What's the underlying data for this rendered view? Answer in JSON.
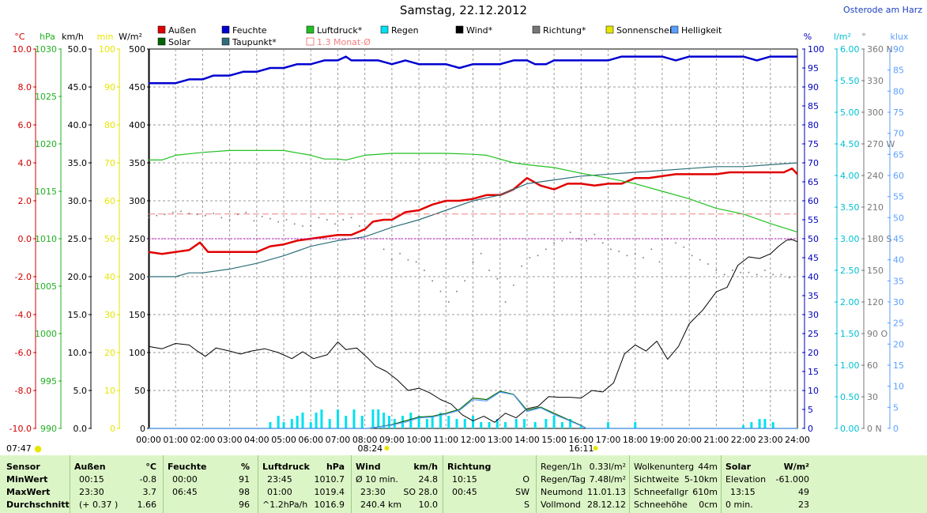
{
  "title": "Samstag, 22.12.2012",
  "location": "Osterode am Harz",
  "colors": {
    "aussen": "#e00000",
    "solar": "#006600",
    "feuchte": "#0000d0",
    "taupunkt": "#2e6e7a",
    "luftdruck": "#20c020",
    "monat": "#f08080",
    "regen": "#00e0f0",
    "wind": "#000000",
    "richtung": "#777777",
    "sonne": "#e6e600",
    "helligkeit": "#5b9fff"
  },
  "legend": [
    {
      "label": "Außen",
      "color": "#e00000"
    },
    {
      "label": "Solar",
      "color": "#006600"
    },
    {
      "label": "Feuchte",
      "color": "#0000d0"
    },
    {
      "label": "Taupunkt*",
      "color": "#2e6e7a"
    },
    {
      "label": "Luftdruck*",
      "color": "#20c020"
    },
    {
      "label": "1.3 Monat-Ø",
      "color": "#f08080"
    },
    {
      "label": "Regen",
      "color": "#00e0f0"
    },
    {
      "label": "Wind*",
      "color": "#000000"
    },
    {
      "label": "Richtung*",
      "color": "#777777"
    },
    {
      "label": "Sonnenschein",
      "color": "#e6e600"
    },
    {
      "label": "Helligkeit",
      "color": "#5b9fff"
    }
  ],
  "axes_left": [
    {
      "unit": "°C",
      "color": "#d00000",
      "ticks": [
        "10.0",
        "8.0",
        "6.0",
        "4.0",
        "2.0",
        "0.0",
        "-2.0",
        "-4.0",
        "-6.0",
        "-8.0",
        "-10.0"
      ]
    },
    {
      "unit": "hPa",
      "color": "#20b020",
      "ticks": [
        "1030",
        "1025",
        "1020",
        "1015",
        "1010",
        "1005",
        "1000",
        "995",
        "990"
      ]
    },
    {
      "unit": "km/h",
      "color": "#000000",
      "ticks": [
        "50.0",
        "45.0",
        "40.0",
        "35.0",
        "30.0",
        "25.0",
        "20.0",
        "15.0",
        "10.0",
        "5.0",
        "0.0"
      ]
    },
    {
      "unit": "min",
      "color": "#e6e600",
      "ticks": [
        "100",
        "90",
        "80",
        "70",
        "60",
        "50",
        "40",
        "30",
        "20",
        "10",
        "0"
      ]
    },
    {
      "unit": "W/m²",
      "color": "#000000",
      "ticks": [
        "500",
        "450",
        "400",
        "350",
        "300",
        "250",
        "200",
        "150",
        "100",
        "50",
        "0"
      ]
    }
  ],
  "axes_right": [
    {
      "unit": "%",
      "color": "#0000c0",
      "ticks": [
        "100",
        "95",
        "90",
        "85",
        "80",
        "75",
        "70",
        "65",
        "60",
        "55",
        "50",
        "45",
        "40",
        "35",
        "30",
        "25",
        "20",
        "15",
        "10",
        "5",
        "0"
      ]
    },
    {
      "unit": "l/m²",
      "color": "#00c0d0",
      "ticks": [
        "6.00",
        "5.50",
        "5.00",
        "4.50",
        "4.00",
        "3.50",
        "3.00",
        "2.50",
        "2.00",
        "1.50",
        "1.00",
        "0.50",
        "0.00"
      ]
    },
    {
      "unit": "°",
      "color": "#777777",
      "ticks": [
        "360 N",
        "330",
        "300",
        "270 W",
        "240",
        "210",
        "180 S",
        "150",
        "120",
        "90 O",
        "60",
        "30",
        "0 N"
      ]
    },
    {
      "unit": "klux",
      "color": "#5b9fff",
      "ticks": [
        "90",
        "85",
        "80",
        "75",
        "70",
        "65",
        "60",
        "55",
        "50",
        "45",
        "40",
        "35",
        "30",
        "25",
        "20",
        "15",
        "10",
        "5",
        "0"
      ]
    }
  ],
  "chart_data": {
    "type": "line",
    "title": "Samstag, 22.12.2012",
    "x_ticks": [
      "00:00",
      "01:00",
      "02:00",
      "03:00",
      "04:00",
      "05:00",
      "06:00",
      "07:00",
      "08:00",
      "09:00",
      "10:00",
      "11:00",
      "12:00",
      "13:00",
      "14:00",
      "15:00",
      "16:00",
      "17:00",
      "18:00",
      "19:00",
      "20:00",
      "21:00",
      "22:00",
      "23:00",
      "24:00"
    ],
    "xlim": [
      0,
      24
    ],
    "grid": true,
    "legend_position": "top",
    "series": [
      {
        "name": "Außen",
        "unit": "°C",
        "ylim": [
          -10,
          10
        ],
        "x": [
          0,
          0.5,
          1,
          1.5,
          1.9,
          2.2,
          3,
          3.5,
          4,
          4.5,
          5,
          5.5,
          6,
          6.5,
          7,
          7.5,
          8,
          8.3,
          8.7,
          9,
          9.5,
          10,
          10.5,
          11,
          11.5,
          12,
          12.5,
          13,
          13.5,
          14,
          14.5,
          15,
          15.5,
          16,
          16.5,
          17,
          17.5,
          18,
          18.5,
          19,
          19.5,
          20,
          20.5,
          21,
          21.5,
          22,
          22.5,
          23,
          23.5,
          23.8,
          24
        ],
        "y": [
          -0.7,
          -0.8,
          -0.7,
          -0.6,
          -0.2,
          -0.7,
          -0.7,
          -0.7,
          -0.7,
          -0.4,
          -0.3,
          -0.1,
          0.0,
          0.1,
          0.2,
          0.2,
          0.5,
          0.9,
          1.0,
          1.0,
          1.4,
          1.5,
          1.8,
          2.0,
          2.0,
          2.1,
          2.3,
          2.3,
          2.6,
          3.2,
          2.8,
          2.6,
          2.9,
          2.9,
          2.8,
          2.9,
          2.9,
          3.2,
          3.2,
          3.3,
          3.4,
          3.4,
          3.4,
          3.4,
          3.5,
          3.5,
          3.5,
          3.5,
          3.5,
          3.7,
          3.4
        ]
      },
      {
        "name": "Feuchte",
        "unit": "%",
        "ylim": [
          0,
          100
        ],
        "x": [
          0,
          1,
          1.5,
          2,
          2.4,
          3,
          3.5,
          4,
          4.5,
          5,
          5.5,
          6,
          6.5,
          7,
          7.3,
          7.5,
          8,
          8.5,
          9,
          9.5,
          10,
          10.5,
          11,
          11.5,
          12,
          12.5,
          13,
          13.5,
          14,
          14.3,
          14.7,
          15,
          15.5,
          16,
          16.5,
          17,
          17.5,
          18,
          18.5,
          19,
          19.5,
          20,
          20.5,
          21,
          21.5,
          22,
          22.5,
          23,
          23.5,
          24
        ],
        "y": [
          91,
          91,
          92,
          92,
          93,
          93,
          94,
          94,
          95,
          95,
          96,
          96,
          97,
          97,
          98,
          97,
          97,
          97,
          96,
          97,
          96,
          96,
          96,
          95,
          96,
          96,
          96,
          97,
          97,
          96,
          96,
          97,
          97,
          97,
          97,
          97,
          98,
          98,
          98,
          98,
          97,
          98,
          98,
          98,
          98,
          98,
          97,
          98,
          98,
          98
        ]
      },
      {
        "name": "Taupunkt*",
        "unit": "°C",
        "ylim": [
          -10,
          10
        ],
        "x": [
          0,
          1,
          1.5,
          2,
          3,
          4,
          5,
          6,
          7,
          8,
          9,
          10,
          11,
          12,
          13,
          14,
          15,
          16,
          17,
          18,
          19,
          20,
          21,
          22,
          23,
          24
        ],
        "y": [
          -2.0,
          -2.0,
          -1.8,
          -1.8,
          -1.6,
          -1.3,
          -0.9,
          -0.4,
          -0.1,
          0.1,
          0.6,
          1.0,
          1.5,
          2.0,
          2.3,
          2.9,
          3.1,
          3.3,
          3.4,
          3.5,
          3.6,
          3.7,
          3.8,
          3.8,
          3.9,
          4.0
        ]
      },
      {
        "name": "Luftdruck*",
        "unit": "hPa",
        "ylim": [
          990,
          1030
        ],
        "x": [
          0,
          0.5,
          1,
          2,
          3,
          4,
          5,
          6,
          6.5,
          7,
          7.3,
          8,
          9,
          10,
          11,
          12,
          12.5,
          13,
          13.5,
          14,
          15,
          16,
          17,
          18,
          19,
          20,
          21,
          22,
          23,
          24
        ],
        "y": [
          1018.3,
          1018.3,
          1018.8,
          1019.1,
          1019.3,
          1019.3,
          1019.3,
          1018.8,
          1018.4,
          1018.4,
          1018.3,
          1018.8,
          1019.0,
          1019.0,
          1019.0,
          1018.9,
          1018.8,
          1018.4,
          1018.0,
          1017.8,
          1017.5,
          1016.9,
          1016.4,
          1015.8,
          1015.0,
          1014.2,
          1013.2,
          1012.6,
          1011.6,
          1010.7
        ]
      },
      {
        "name": "1.3 Monat-Ø",
        "unit": "°C",
        "ylim": [
          -10,
          10
        ],
        "x": [
          0,
          24
        ],
        "y": [
          1.3,
          1.3
        ]
      },
      {
        "name": "Wind*",
        "unit": "km/h",
        "ylim": [
          0,
          50
        ],
        "x": [
          0,
          0.5,
          1,
          1.5,
          1.8,
          2.1,
          2.5,
          3,
          3.4,
          3.8,
          4.3,
          4.8,
          5.3,
          5.7,
          6.1,
          6.6,
          7,
          7.3,
          7.7,
          8.1,
          8.4,
          8.8,
          9.2,
          9.6,
          10,
          10.4,
          10.8,
          11.2,
          11.6,
          12,
          12.4,
          12.8,
          13.2,
          13.6,
          14,
          14.4,
          14.8,
          15.2,
          15.6,
          16,
          16.4,
          16.8,
          17.2,
          17.6,
          18,
          18.4,
          18.8,
          19.2,
          19.6,
          20,
          20.5,
          21,
          21.4,
          21.8,
          22.2,
          22.6,
          23,
          23.3,
          23.6,
          23.8,
          24
        ],
        "y": [
          10.8,
          10.5,
          11.2,
          11.0,
          10.2,
          9.5,
          10.6,
          10.2,
          9.8,
          10.2,
          10.5,
          10.0,
          9.2,
          10.1,
          9.2,
          9.7,
          11.4,
          10.4,
          10.6,
          9.3,
          8.2,
          7.5,
          6.4,
          5.0,
          5.3,
          4.7,
          3.8,
          3.2,
          1.8,
          1.0,
          1.6,
          0.8,
          2.0,
          1.4,
          2.6,
          2.9,
          4.2,
          4.1,
          4.1,
          4.0,
          5.0,
          4.8,
          6.0,
          9.8,
          11.0,
          10.2,
          11.5,
          9.1,
          10.8,
          13.8,
          15.6,
          18.0,
          18.6,
          21.5,
          22.6,
          22.4,
          23.0,
          24.0,
          24.8,
          24.9,
          24.6
        ]
      },
      {
        "name": "Richtung*",
        "unit": "°",
        "ylim": [
          0,
          360
        ],
        "x": [
          0,
          0.3,
          0.6,
          0.9,
          1.2,
          1.5,
          1.8,
          2.1,
          2.4,
          2.7,
          3,
          3.3,
          3.6,
          3.9,
          4.2,
          4.5,
          4.8,
          5.1,
          5.4,
          5.7,
          6,
          6.3,
          6.6,
          6.9,
          7.2,
          7.5,
          7.8,
          8.1,
          8.4,
          8.7,
          9,
          9.3,
          9.6,
          9.9,
          10.2,
          10.5,
          10.8,
          11.1,
          11.4,
          11.7,
          12,
          12.3,
          12.6,
          12.9,
          13.2,
          13.5,
          13.8,
          14.1,
          14.4,
          14.7,
          15,
          15.3,
          15.6,
          15.9,
          16.2,
          16.5,
          16.8,
          17.1,
          17.4,
          17.7,
          18,
          18.3,
          18.6,
          18.9,
          19.2,
          19.5,
          19.8,
          20.1,
          20.4,
          20.7,
          21,
          21.3,
          21.6,
          21.9,
          22.2,
          22.5,
          22.8,
          23.1,
          23.4,
          23.7,
          24
        ],
        "y": [
          200,
          202,
          203,
          205,
          206,
          204,
          203,
          202,
          204,
          200,
          198,
          203,
          205,
          197,
          201,
          199,
          196,
          198,
          194,
          192,
          192,
          200,
          198,
          194,
          198,
          200,
          192,
          192,
          180,
          170,
          160,
          166,
          160,
          158,
          150,
          140,
          130,
          120,
          130,
          140,
          158,
          166,
          150,
          142,
          120,
          136,
          154,
          162,
          164,
          170,
          176,
          178,
          186,
          180,
          178,
          184,
          176,
          170,
          168,
          164,
          166,
          162,
          170,
          158,
          180,
          176,
          172,
          164,
          160,
          156,
          150,
          146,
          150,
          148,
          148,
          146,
          150,
          146,
          146,
          143,
          142
        ]
      },
      {
        "name": "Solar",
        "unit": "W/m²",
        "ylim": [
          0,
          500
        ],
        "x": [
          0,
          8.1,
          8.5,
          9,
          9.5,
          10,
          10.5,
          11,
          11.5,
          12,
          12.5,
          13,
          13.5,
          14,
          14.5,
          15,
          15.5,
          16,
          16.2,
          24
        ],
        "y": [
          0,
          0,
          2,
          5,
          10,
          15,
          16,
          20,
          25,
          40,
          38,
          49,
          45,
          24,
          28,
          20,
          12,
          4,
          0,
          0
        ]
      },
      {
        "name": "Helligkeit",
        "unit": "klux",
        "ylim": [
          0,
          90
        ],
        "x": [
          0,
          8.1,
          8.5,
          9,
          9.5,
          10,
          10.5,
          11,
          11.5,
          12,
          12.5,
          13,
          13.5,
          14,
          14.5,
          15,
          15.5,
          16,
          16.2,
          24
        ],
        "y": [
          0,
          0,
          0.3,
          0.8,
          1.5,
          2.5,
          2.7,
          3.4,
          4.3,
          6.8,
          6.5,
          8.6,
          8.0,
          4.0,
          4.9,
          3.3,
          2.0,
          0.6,
          0,
          0
        ]
      },
      {
        "name": "Regen",
        "unit": "l/m²",
        "ylim": [
          0,
          6
        ],
        "type": "bar",
        "x": [
          4.5,
          4.8,
          5.0,
          5.3,
          5.5,
          5.7,
          6.0,
          6.2,
          6.4,
          6.7,
          7.0,
          7.3,
          7.6,
          7.9,
          8.3,
          8.5,
          8.7,
          8.9,
          9.1,
          9.4,
          9.7,
          10.0,
          10.3,
          10.5,
          10.8,
          11.1,
          11.4,
          11.7,
          12.0,
          12.3,
          12.6,
          12.9,
          13.2,
          13.6,
          13.9,
          14.3,
          14.7,
          15.0,
          15.3,
          15.6,
          16.0,
          17.0,
          18.0,
          22.0,
          22.3,
          22.6,
          22.8,
          23.1
        ],
        "y": [
          0.1,
          0.2,
          0.1,
          0.15,
          0.2,
          0.25,
          0.1,
          0.25,
          0.3,
          0.15,
          0.3,
          0.2,
          0.3,
          0.2,
          0.3,
          0.3,
          0.25,
          0.2,
          0.15,
          0.2,
          0.25,
          0.2,
          0.15,
          0.2,
          0.25,
          0.2,
          0.15,
          0.15,
          0.2,
          0.1,
          0.1,
          0.15,
          0.1,
          0.15,
          0.15,
          0.1,
          0.15,
          0.2,
          0.1,
          0.15,
          0.05,
          0.1,
          0.1,
          0.05,
          0.1,
          0.15,
          0.15,
          0.1
        ]
      }
    ],
    "markers": {
      "sunrise": "07:47",
      "sun_a": "08:24",
      "sun_b": "16:11"
    }
  },
  "sunrise_label": "07:47",
  "summary": {
    "sensor": {
      "header": "Sensor",
      "rows": [
        "MinWert",
        "MaxWert",
        "Durchschnitt"
      ]
    },
    "aussen": {
      "header": "Außen",
      "unit": "°C",
      "times": [
        "00:15",
        "23:30",
        "(+ 0.37 )"
      ],
      "values": [
        "-0.8",
        "3.7",
        "1.66"
      ]
    },
    "feuchte": {
      "header": "Feuchte",
      "unit": "%",
      "times": [
        "00:00",
        "06:45",
        ""
      ],
      "values": [
        "91",
        "98",
        "96"
      ]
    },
    "luftdruck": {
      "header": "Luftdruck",
      "unit": "hPa",
      "times": [
        "23:45",
        "01:00",
        "^1.2hPa/h"
      ],
      "values": [
        "1010.7",
        "1019.4",
        "1016.9"
      ]
    },
    "wind": {
      "header": "Wind",
      "unit": "km/h",
      "times": [
        "Ø 10 min.",
        "23:30",
        "240.4 km"
      ],
      "values": [
        "24.8",
        "SO 28.0",
        "10.0"
      ]
    },
    "richtung": {
      "header": "Richtung",
      "times": [
        "10:15",
        "00:45",
        ""
      ],
      "values": [
        "O",
        "SW",
        "S"
      ]
    },
    "regen": {
      "labels": [
        "Regen/1h",
        "Regen/Tag",
        "Neumond",
        "Vollmond"
      ],
      "values": [
        "0.33l/m²",
        "7.48l/m²",
        "11.01.13",
        "28.12.12"
      ]
    },
    "wolken": {
      "labels": [
        "Wolkenunterg",
        "Sichtweite",
        "Schneefallgr",
        "Schneehöhe"
      ],
      "values": [
        "44m",
        "5-10km",
        "610m",
        "0cm"
      ]
    },
    "solar": {
      "header": "Solar",
      "unit": "W/m²",
      "labels": [
        "Elevation",
        "13:15",
        "0 min."
      ],
      "values": [
        "-61.000",
        "49",
        "23"
      ]
    }
  }
}
